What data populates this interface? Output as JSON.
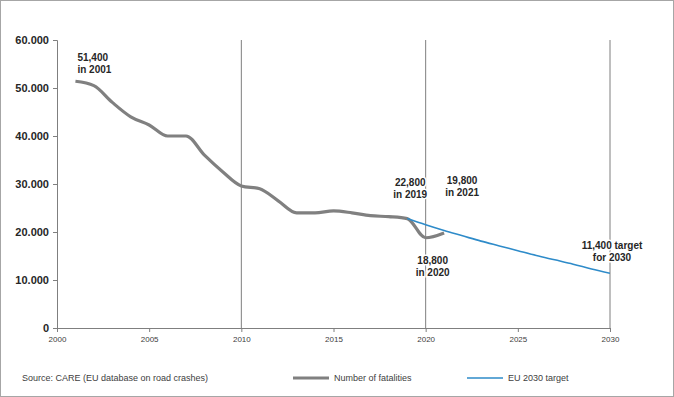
{
  "chart_data": {
    "type": "line",
    "x": [
      2001,
      2002,
      2003,
      2004,
      2005,
      2006,
      2007,
      2008,
      2009,
      2010,
      2011,
      2012,
      2013,
      2014,
      2015,
      2016,
      2017,
      2018,
      2019,
      2020,
      2021,
      2022,
      2023,
      2024,
      2025,
      2026,
      2027,
      2028,
      2029,
      2030
    ],
    "series": [
      {
        "name": "Number of fatalities",
        "color": "#808080",
        "values": [
          51400,
          50500,
          47000,
          44000,
          42300,
          40000,
          40000,
          36000,
          32500,
          29600,
          29000,
          26500,
          24000,
          24000,
          24400,
          24000,
          23400,
          23200,
          22800,
          18800,
          19800,
          null,
          null,
          null,
          null,
          null,
          null,
          null,
          null,
          null
        ]
      },
      {
        "name": "EU 2030 target",
        "color": "#2e8bc9",
        "values": [
          null,
          null,
          null,
          null,
          null,
          null,
          null,
          null,
          null,
          null,
          null,
          null,
          null,
          null,
          null,
          null,
          null,
          null,
          22800,
          21500,
          20300,
          19200,
          18100,
          17100,
          16100,
          15100,
          14200,
          13300,
          12300,
          11400
        ]
      }
    ],
    "xlim": [
      2000,
      2030
    ],
    "xticks": [
      2000,
      2005,
      2010,
      2015,
      2020,
      2025,
      2030
    ],
    "ylim": [
      0,
      60000
    ],
    "yticks": [
      0,
      {
        "value": 10000,
        "label": "10.000"
      },
      {
        "value": 20000,
        "label": "20.000"
      },
      {
        "value": 30000,
        "label": "30.000"
      },
      {
        "value": 40000,
        "label": "40.000"
      },
      {
        "value": 50000,
        "label": "50.000"
      },
      {
        "value": 60000,
        "label": "60.000"
      }
    ],
    "vertical_lines": [
      2010,
      2020,
      2030
    ],
    "annotations": [
      {
        "text": [
          "51,400",
          "in 2001"
        ],
        "x": 2001,
        "y": 51400
      },
      {
        "text": [
          "22,800",
          "in 2019"
        ],
        "x": 2019,
        "y": 22800
      },
      {
        "text": [
          "18,800",
          "in 2020"
        ],
        "x": 2020,
        "y": 18800
      },
      {
        "text": [
          "19,800",
          "in 2021"
        ],
        "x": 2021,
        "y": 19800
      },
      {
        "text": [
          "11,400 target",
          "for 2030"
        ],
        "x": 2030,
        "y": 11400
      }
    ],
    "source": "Source: CARE (EU database on road crashes)",
    "legend": "bottom",
    "grid": false
  }
}
